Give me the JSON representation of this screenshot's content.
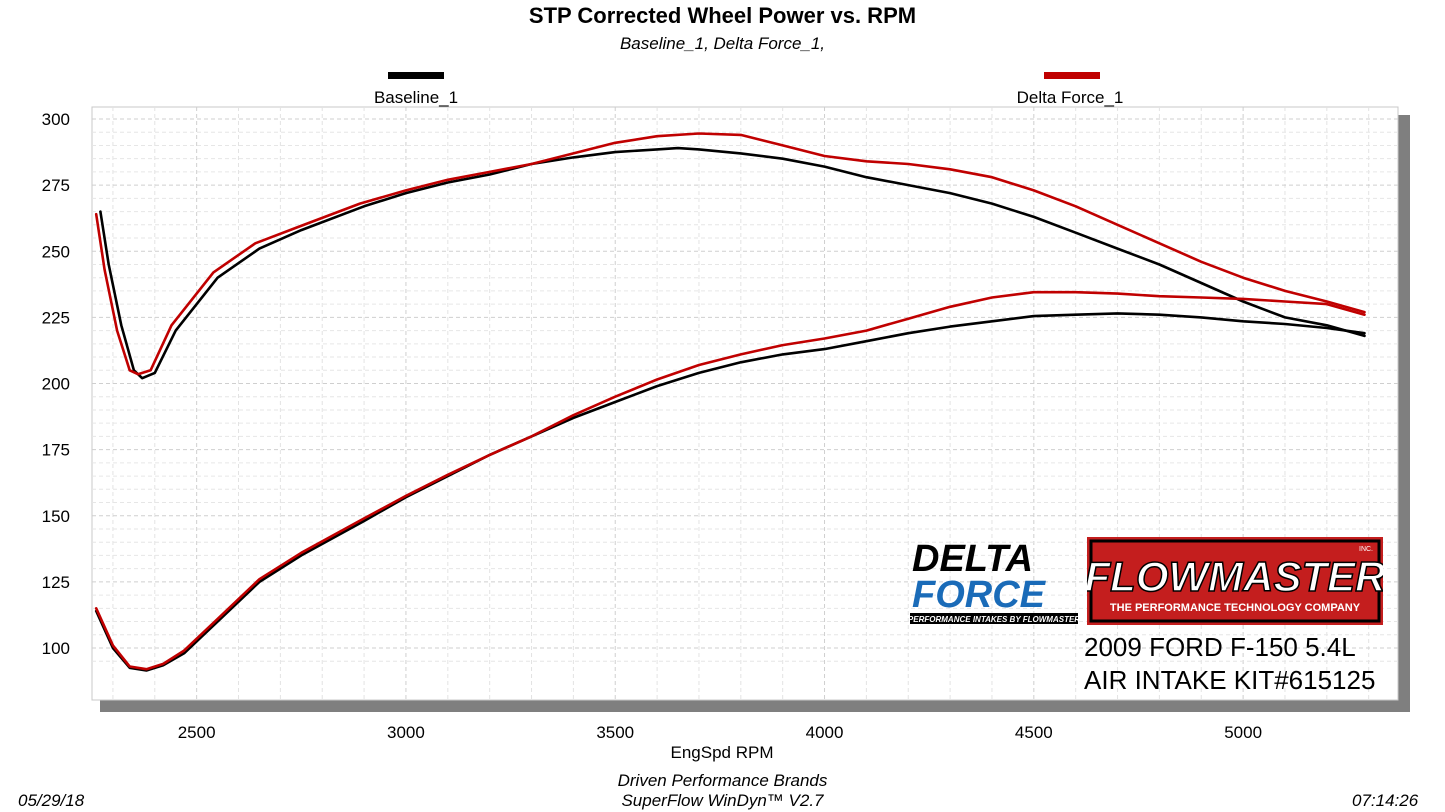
{
  "chart_data": {
    "type": "line",
    "title": "STP Corrected Wheel Power vs. RPM",
    "subtitle": "Baseline_1, Delta Force_1,",
    "xlabel": "EngSpd  RPM",
    "ylabel": "",
    "xlim": [
      2250,
      5370
    ],
    "ylim": [
      90,
      300
    ],
    "xticks": [
      "2500",
      "3000",
      "3500",
      "4000",
      "4500",
      "5000"
    ],
    "xtick_values": [
      2500,
      3000,
      3500,
      4000,
      4500,
      5000
    ],
    "yticks": [
      "300",
      "275",
      "250",
      "225",
      "200",
      "175",
      "150",
      "125",
      "100"
    ],
    "ytick_values": [
      300,
      275,
      250,
      225,
      200,
      175,
      150,
      125,
      100
    ],
    "grid": true,
    "legend_placement": "top",
    "series": [
      {
        "name": "Baseline_1",
        "color": "#000000",
        "kind": "power",
        "x": [
          2270,
          2290,
          2320,
          2350,
          2370,
          2400,
          2450,
          2550,
          2650,
          2750,
          2900,
          3000,
          3100,
          3200,
          3300,
          3400,
          3500,
          3600,
          3650,
          3700,
          3800,
          3900,
          4000,
          4100,
          4200,
          4300,
          4400,
          4500,
          4600,
          4700,
          4800,
          4900,
          5000,
          5100,
          5200,
          5290
        ],
        "y": [
          265,
          245,
          222,
          205,
          202,
          204,
          220,
          240,
          251,
          258,
          267,
          272,
          276,
          279,
          283,
          285.5,
          287.5,
          288.5,
          289,
          288.5,
          287,
          285,
          282,
          278,
          275,
          272,
          268,
          263,
          257,
          251,
          245,
          238,
          231,
          225,
          222,
          218
        ]
      },
      {
        "name": "Delta Force_1",
        "color": "#c00000",
        "kind": "power",
        "x": [
          2260,
          2280,
          2310,
          2340,
          2360,
          2390,
          2440,
          2540,
          2640,
          2740,
          2890,
          3000,
          3100,
          3200,
          3300,
          3400,
          3500,
          3600,
          3700,
          3800,
          3900,
          4000,
          4100,
          4200,
          4300,
          4400,
          4500,
          4600,
          4700,
          4800,
          4900,
          5000,
          5100,
          5200,
          5290
        ],
        "y": [
          264,
          243,
          220,
          205,
          203.5,
          205,
          222,
          242,
          253,
          259,
          268,
          273,
          277,
          280,
          283,
          287,
          291,
          293.5,
          294.5,
          294,
          290,
          286,
          284,
          283,
          281,
          278,
          273,
          267,
          260,
          253,
          246,
          240,
          235,
          231,
          227
        ]
      },
      {
        "name": "Baseline_1",
        "color": "#000000",
        "kind": "torque",
        "x": [
          2260,
          2300,
          2340,
          2380,
          2420,
          2470,
          2550,
          2650,
          2750,
          2900,
          3000,
          3100,
          3200,
          3300,
          3400,
          3500,
          3600,
          3700,
          3800,
          3900,
          4000,
          4100,
          4200,
          4300,
          4400,
          4500,
          4600,
          4700,
          4800,
          4900,
          5000,
          5100,
          5200,
          5290
        ],
        "y": [
          114,
          100,
          92.5,
          91.5,
          93.5,
          98,
          110,
          125,
          135,
          148,
          157,
          165,
          173,
          180,
          187,
          193,
          199,
          204,
          208,
          211,
          213,
          216,
          219,
          221.5,
          223.5,
          225.5,
          226,
          226.5,
          226,
          225,
          223.5,
          222.5,
          221,
          219
        ]
      },
      {
        "name": "Delta Force_1",
        "color": "#c00000",
        "kind": "torque",
        "x": [
          2260,
          2300,
          2340,
          2380,
          2420,
          2470,
          2550,
          2650,
          2750,
          2900,
          3000,
          3100,
          3200,
          3300,
          3400,
          3500,
          3600,
          3700,
          3800,
          3900,
          4000,
          4100,
          4200,
          4300,
          4400,
          4500,
          4600,
          4700,
          4800,
          4900,
          5000,
          5100,
          5200,
          5290
        ],
        "y": [
          115,
          101,
          93,
          92,
          94,
          99,
          111,
          126,
          136,
          149,
          157.5,
          165.5,
          173,
          180,
          188,
          195,
          201.5,
          207,
          211,
          214.5,
          217,
          220,
          224.5,
          229,
          232.5,
          234.5,
          234.5,
          234,
          233,
          232.5,
          232,
          231,
          230,
          226
        ]
      }
    ],
    "legend": [
      {
        "label": "Baseline_1",
        "color": "#000000"
      },
      {
        "label": "Delta Force_1",
        "color": "#c00000"
      }
    ]
  },
  "logos": {
    "delta_force": {
      "line1": "DELTA",
      "line2": "FORCE",
      "tagline": "PERFORMANCE INTAKES BY FLOWMASTER",
      "blue": "#1a6bb8"
    },
    "flowmaster": {
      "name": "FLOWMASTER",
      "inc": "INC.",
      "tagline": "THE PERFORMANCE TECHNOLOGY COMPANY",
      "red": "#c41e1e"
    }
  },
  "vehicle_info": {
    "line1": "2009 FORD F-150 5.4L",
    "line2": "AIR INTAKE KIT#615125"
  },
  "footer": {
    "date": "05/29/18",
    "company": "Driven Performance Brands",
    "software": "SuperFlow WinDyn™  V2.7",
    "time": "07:14:26"
  }
}
